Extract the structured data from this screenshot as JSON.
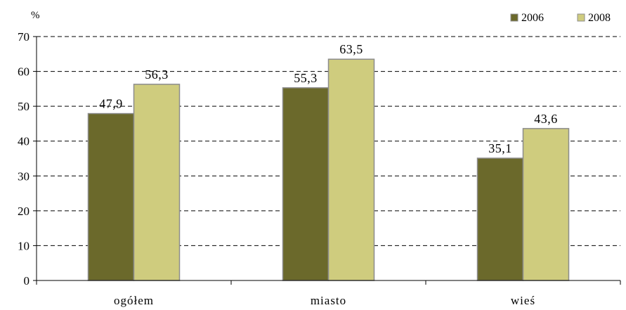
{
  "chart_data": {
    "type": "bar",
    "unit_label": "%",
    "categories": [
      "ogółem",
      "miasto",
      "wieś"
    ],
    "series": [
      {
        "name": "2006",
        "values": [
          47.9,
          55.3,
          35.1
        ],
        "labels": [
          "47,9",
          "55,3",
          "35,1"
        ],
        "color": "#6b692b"
      },
      {
        "name": "2008",
        "values": [
          56.3,
          63.5,
          43.6
        ],
        "labels": [
          "56,3",
          "63,5",
          "43,6"
        ],
        "color": "#cfcc7e"
      }
    ],
    "ylim": [
      0,
      70
    ],
    "yticks": [
      0,
      10,
      20,
      30,
      40,
      50,
      60,
      70
    ],
    "grid": true,
    "legend_position": "top-right",
    "bar_border_color": "#8c8c8c",
    "grid_color": "#000000"
  }
}
